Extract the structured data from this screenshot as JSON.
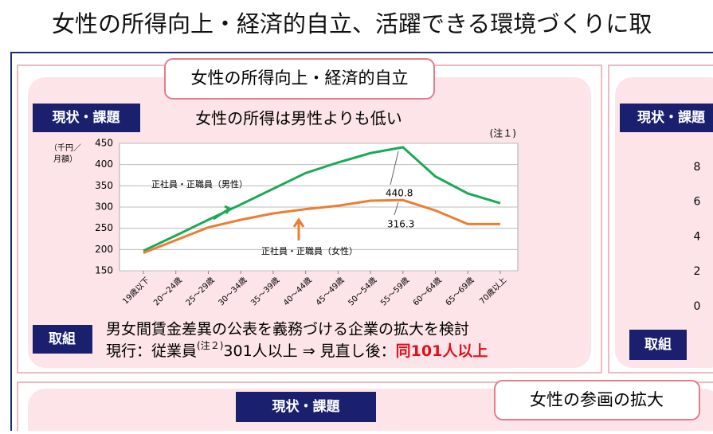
{
  "header": {
    "title": "女性の所得向上・経済的自立、活躍できる環境づくりに取"
  },
  "left_panel": {
    "label": "女性の所得向上・経済的自立",
    "status_tag": "現状・課題",
    "action_tag": "取組",
    "action_line1": "男女間賃金差異の公表を義務づける企業の拡大を検討",
    "action_line2": {
      "part1": "現行：従業員",
      "superscript": "(注２)",
      "part2": "301人以上 ⇒ 見直し後：",
      "highlight": "同101人以上"
    }
  },
  "chart_data": {
    "type": "line",
    "title": "女性の所得は男性よりも低い",
    "note": "(注１)",
    "ylabel": [
      "（千円／",
      "月額）"
    ],
    "categories": [
      "19歳以下",
      "20～24歳",
      "25～29歳",
      "30～34歳",
      "35～39歳",
      "40～44歳",
      "45～49歳",
      "50～54歳",
      "55～59歳",
      "60～64歳",
      "65～69歳",
      "70歳以上"
    ],
    "series": [
      {
        "name": "正社員・正職員（男性）",
        "color": "#1aaa55",
        "values": [
          197,
          233,
          270,
          306,
          343,
          380,
          405,
          427,
          440.8,
          372,
          332,
          309
        ]
      },
      {
        "name": "正社員・正職員（女性）",
        "color": "#ed7d31",
        "values": [
          192,
          222,
          252,
          270,
          285,
          295,
          303,
          315,
          316.3,
          292,
          260,
          260
        ]
      }
    ],
    "ylim": [
      150,
      450
    ],
    "yticks": [
      150,
      200,
      250,
      300,
      350,
      400,
      450
    ],
    "grid": true
  },
  "right_panel": {
    "status_tag": "現状・課題",
    "action_tag": "取組",
    "yticks": [
      "8",
      "6",
      "4",
      "2",
      "0"
    ]
  },
  "bottom_panel": {
    "status_tag": "現状・課題",
    "label": "女性の参画の拡大"
  }
}
